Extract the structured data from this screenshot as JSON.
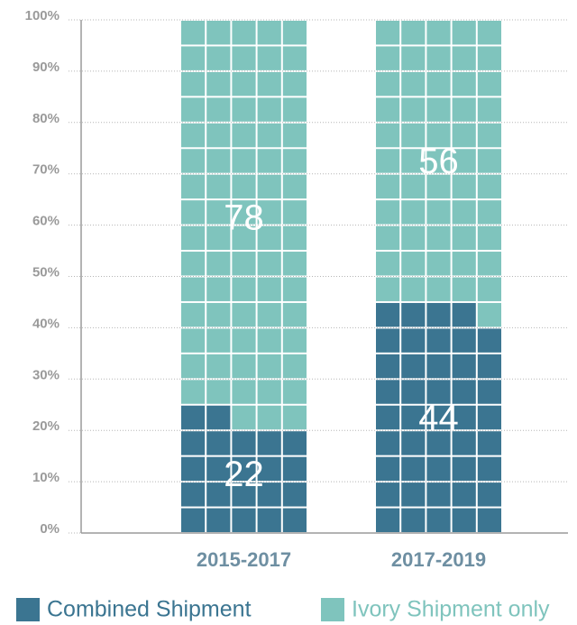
{
  "chart_data": {
    "type": "waffle",
    "categories": [
      "2015-2017",
      "2017-2019"
    ],
    "series": [
      {
        "name": "Combined Shipment",
        "color": "#3b7591",
        "values": [
          22,
          44
        ]
      },
      {
        "name": "Ivory Shipment only",
        "color": "#7fc4bd",
        "values": [
          78,
          56
        ]
      }
    ],
    "ylim": [
      0,
      100
    ],
    "yticks": [
      {
        "value": 0,
        "label": "0%"
      },
      {
        "value": 10,
        "label": "10%"
      },
      {
        "value": 20,
        "label": "20%"
      },
      {
        "value": 30,
        "label": "30%"
      },
      {
        "value": 40,
        "label": "40%"
      },
      {
        "value": 50,
        "label": "50%"
      },
      {
        "value": 60,
        "label": "60%"
      },
      {
        "value": 70,
        "label": "70%"
      },
      {
        "value": 80,
        "label": "80%"
      },
      {
        "value": 90,
        "label": "90%"
      },
      {
        "value": 100,
        "label": "100%"
      }
    ],
    "grid": true
  }
}
